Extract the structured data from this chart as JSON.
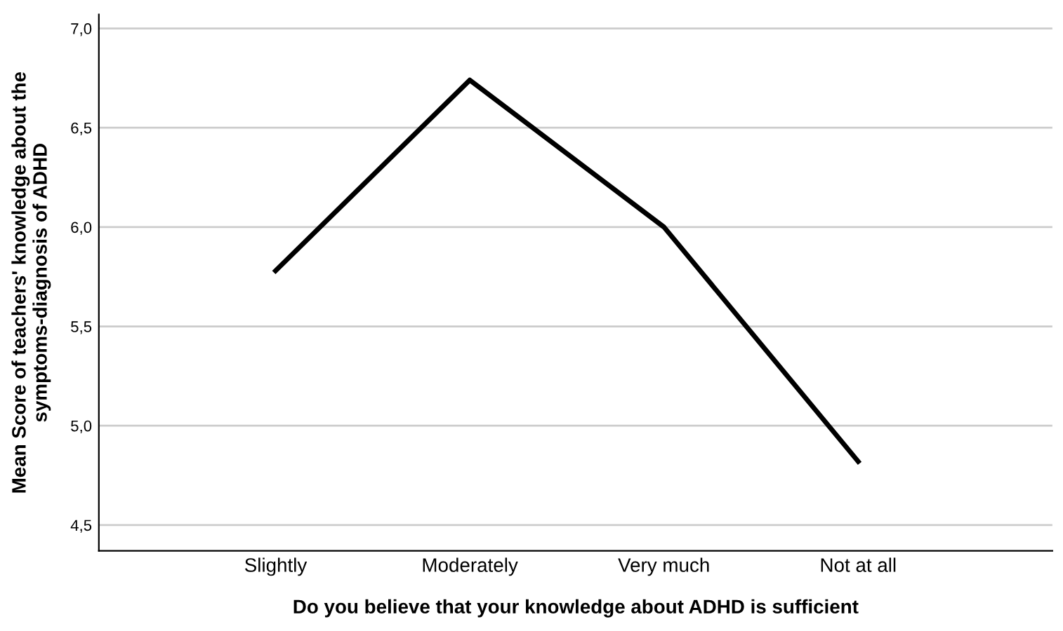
{
  "chart_data": {
    "type": "line",
    "xlabel": "Do you believe that your knowledge about ADHD is sufficient",
    "ylabel": "Mean Score of teachers' knowledge about the symptoms-diagnosis of ADHD",
    "categories": [
      "Slightly",
      "Moderately",
      "Very much",
      "Not at all"
    ],
    "series": [
      {
        "color": "#000000",
        "values": [
          5.78,
          6.74,
          6.0,
          4.82
        ]
      }
    ],
    "ylim": [
      4.37,
      7.07
    ],
    "yticks": [
      {
        "value": 4.5,
        "label": "4,5"
      },
      {
        "value": 5.0,
        "label": "5,0"
      },
      {
        "value": 5.5,
        "label": "5,5"
      },
      {
        "value": 6.0,
        "label": "6,0"
      },
      {
        "value": 6.5,
        "label": "6,5"
      },
      {
        "value": 7.0,
        "label": "7,0"
      }
    ],
    "grid": "y",
    "marker": "none",
    "line_style": "solid"
  }
}
